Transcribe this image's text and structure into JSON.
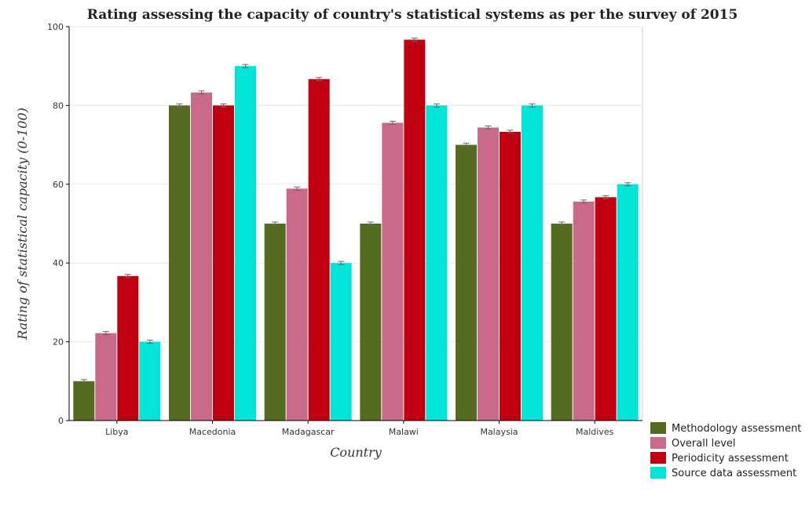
{
  "chart_data": {
    "type": "bar",
    "title": "Rating assessing the capacity of country's statistical systems as per the survey of 2015",
    "xlabel": "Country",
    "ylabel": "Rating of statistical capacity (0-100)",
    "ylim": [
      0,
      100
    ],
    "yticks": [
      0,
      20,
      40,
      60,
      80,
      100
    ],
    "grid": true,
    "legend_position": "bottom-right",
    "categories": [
      "Libya",
      "Macedonia",
      "Madagascar",
      "Malawi",
      "Malaysia",
      "Maldives"
    ],
    "series": [
      {
        "name": "Methodology assessment",
        "color": "#556b1f",
        "values": [
          10,
          80,
          50,
          50,
          70,
          50
        ]
      },
      {
        "name": "Overall level",
        "color": "#c96a8a",
        "values": [
          22.2,
          83.3,
          58.9,
          75.6,
          74.4,
          55.6
        ]
      },
      {
        "name": "Periodicity assessment",
        "color": "#c00010",
        "values": [
          36.7,
          80,
          86.7,
          96.7,
          73.3,
          56.7
        ]
      },
      {
        "name": "Source data assessment",
        "color": "#00e5d8",
        "values": [
          20,
          90,
          40,
          80,
          80,
          60
        ]
      }
    ]
  }
}
